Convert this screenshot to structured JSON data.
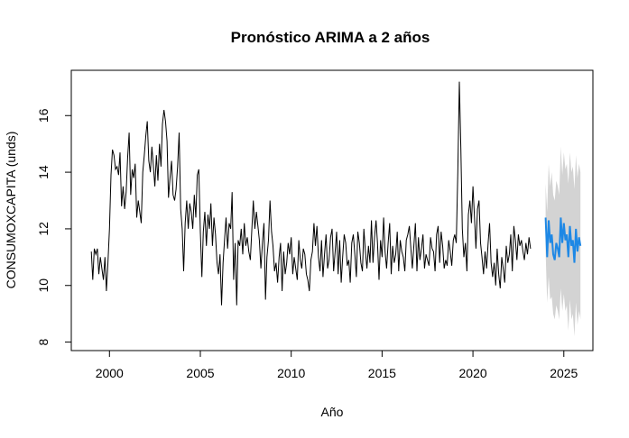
{
  "chart_data": {
    "type": "line",
    "title": "Pronóstico ARIMA a 2 años",
    "xlabel": "Año",
    "ylabel": "CONSUMOXCAPITA (unds)",
    "xlim": [
      1997.9,
      2026.6
    ],
    "ylim": [
      7.7,
      17.6
    ],
    "xticks": [
      2000,
      2005,
      2010,
      2015,
      2020,
      2025
    ],
    "yticks": [
      8,
      10,
      12,
      14,
      16
    ],
    "grid": false,
    "legend": "none",
    "colors": {
      "historical": "#000000",
      "forecast": "#1E88E5",
      "interval": "#D3D3D3"
    },
    "series": [
      {
        "kind": "historical",
        "start": 1999.0,
        "step": 0.0833333,
        "values": [
          11.2,
          10.2,
          11.3,
          11.1,
          11.3,
          10.4,
          11.0,
          10.6,
          10.2,
          11.0,
          9.8,
          10.8,
          12.0,
          13.9,
          14.8,
          14.6,
          14.1,
          14.2,
          13.9,
          14.7,
          12.8,
          13.5,
          12.7,
          13.3,
          14.5,
          15.4,
          13.2,
          14.1,
          13.8,
          14.3,
          12.4,
          13.0,
          12.6,
          12.2,
          14.0,
          14.6,
          15.3,
          15.8,
          14.4,
          14.0,
          14.9,
          14.2,
          13.5,
          14.6,
          13.7,
          15.0,
          14.2,
          15.7,
          16.2,
          15.8,
          15.1,
          13.1,
          13.8,
          14.4,
          13.2,
          13.0,
          13.4,
          14.2,
          15.4,
          12.7,
          12.0,
          10.5,
          12.2,
          13.0,
          12.0,
          12.9,
          12.6,
          12.0,
          13.2,
          12.4,
          13.9,
          14.1,
          11.9,
          10.3,
          11.9,
          12.6,
          11.4,
          12.5,
          12.0,
          12.9,
          11.4,
          12.4,
          11.8,
          10.8,
          10.4,
          11.1,
          9.3,
          10.8,
          11.6,
          12.4,
          11.3,
          12.2,
          12.0,
          13.3,
          10.2,
          11.5,
          9.3,
          11.6,
          11.4,
          12.0,
          11.1,
          12.2,
          11.4,
          11.7,
          11.2,
          10.9,
          12.0,
          13.0,
          12.0,
          12.6,
          12.1,
          11.6,
          10.6,
          11.5,
          12.2,
          9.5,
          11.0,
          11.6,
          13.0,
          11.9,
          11.4,
          10.5,
          10.8,
          10.1,
          11.0,
          11.5,
          9.8,
          11.2,
          10.4,
          10.8,
          11.5,
          11.1,
          11.7,
          10.4,
          11.0,
          10.6,
          10.2,
          11.6,
          10.9,
          10.6,
          11.3,
          11.1,
          10.4,
          10.2,
          9.8,
          10.9,
          11.2,
          12.2,
          11.4,
          12.1,
          11.0,
          10.5,
          11.6,
          10.3,
          11.1,
          11.8,
          10.6,
          10.9,
          11.7,
          12.0,
          10.5,
          11.2,
          11.9,
          10.4,
          11.6,
          10.1,
          11.0,
          11.8,
          11.5,
          10.7,
          10.9,
          10.1,
          11.5,
          11.8,
          11.1,
          10.3,
          11.9,
          11.5,
          10.8,
          10.5,
          12.0,
          11.2,
          10.6,
          11.4,
          10.8,
          12.3,
          10.8,
          11.7,
          12.3,
          11.5,
          10.2,
          11.6,
          11.0,
          12.4,
          11.2,
          10.6,
          11.5,
          12.2,
          10.4,
          11.4,
          10.8,
          11.1,
          11.9,
          10.5,
          11.6,
          11.2,
          11.0,
          10.5,
          11.6,
          11.8,
          12.1,
          11.3,
          10.6,
          11.4,
          12.2,
          10.5,
          11.7,
          10.9,
          11.3,
          11.8,
          10.6,
          11.1,
          10.9,
          10.7,
          11.7,
          11.3,
          11.2,
          10.5,
          11.8,
          12.1,
          10.8,
          11.9,
          11.4,
          10.6,
          10.9,
          10.7,
          11.6,
          11.2,
          10.7,
          11.6,
          11.8,
          11.5,
          14.0,
          17.2,
          14.8,
          12.0,
          11.0,
          11.5,
          10.5,
          12.5,
          13.0,
          12.2,
          13.5,
          12.4,
          11.3,
          12.7,
          13.0,
          11.5,
          11.0,
          10.4,
          11.2,
          10.6,
          11.5,
          12.2,
          10.8,
          10.3,
          10.8,
          10.0,
          11.3,
          10.4,
          9.9,
          11.0,
          10.6,
          10.1,
          11.4,
          10.8,
          11.1,
          11.8,
          10.5,
          12.1,
          11.6,
          10.9,
          11.8,
          11.4,
          11.6,
          11.2,
          10.9,
          11.5,
          11.1,
          11.7,
          11.3
        ]
      },
      {
        "kind": "forecast",
        "start": 2024.0,
        "step": 0.0833333,
        "values": [
          12.4,
          11.0,
          12.3,
          11.5,
          11.8,
          11.1,
          10.9,
          11.5,
          11.3,
          11.0,
          12.4,
          11.5,
          12.2,
          11.6,
          11.8,
          11.0,
          12.1,
          11.4,
          11.6,
          10.8,
          12.0,
          11.2,
          11.7,
          11.4
        ],
        "lower": [
          11.2,
          9.4,
          10.3,
          9.5,
          9.6,
          9.0,
          8.8,
          9.3,
          9.1,
          8.8,
          9.9,
          9.1,
          9.7,
          9.1,
          9.3,
          8.4,
          9.5,
          8.8,
          9.0,
          8.2,
          9.4,
          8.6,
          9.1,
          8.8
        ],
        "upper": [
          13.6,
          12.6,
          14.3,
          13.5,
          14.0,
          13.2,
          13.0,
          13.7,
          13.5,
          13.2,
          14.9,
          13.9,
          14.7,
          14.1,
          14.3,
          13.6,
          14.7,
          14.0,
          14.2,
          13.4,
          14.6,
          13.8,
          14.3,
          14.0
        ]
      }
    ]
  }
}
